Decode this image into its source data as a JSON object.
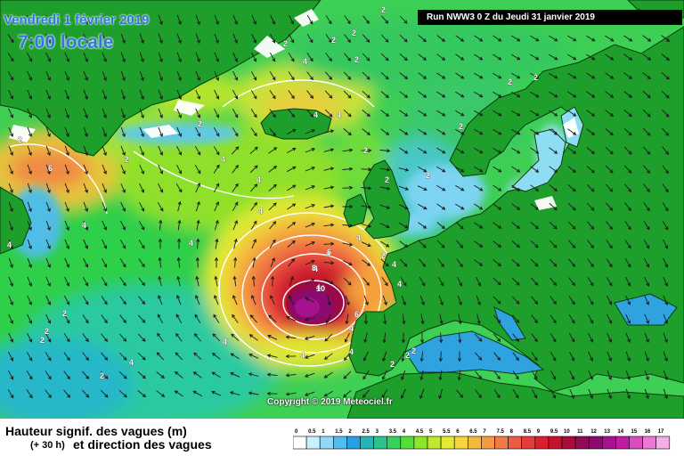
{
  "header": {
    "date": "Vendredi 1 février 2019",
    "local_time": "7:00 locale",
    "run_info": "Run NWW3 0 Z du Jeudi 31 janvier 2019"
  },
  "map": {
    "copyright": "Copyright © 2019 Meteociel.fr",
    "contour_labels": [
      "2",
      "2",
      "2",
      "2",
      "2",
      "2",
      "4",
      "4",
      "4",
      "2",
      "2",
      "2",
      "2",
      "6",
      "4",
      "4",
      "4",
      "4",
      "4",
      "2",
      "2",
      "2",
      "2",
      "2",
      "4",
      "4",
      "4",
      "4",
      "4",
      "4",
      "6",
      "8",
      "10",
      "6",
      "4",
      "4",
      "4",
      "4",
      "2",
      "2",
      "2",
      "4",
      "2",
      "2",
      "2",
      "4",
      "4",
      "2"
    ],
    "colors": {
      "land": "#1e9e2a",
      "border": "#0b3d0b",
      "ice": "#ffffff",
      "sea_calm": "#5bc8f0",
      "wave_max": "#8b0a7a"
    }
  },
  "legend": {
    "title_line1": "Hauteur signif. des vagues (m)",
    "title_line2": "et direction des vagues",
    "forecast_hours": "(+ 30 h)",
    "scale_values": [
      "0",
      "0.5",
      "1",
      "1.5",
      "2",
      "2.5",
      "3",
      "3.5",
      "4",
      "4.5",
      "5",
      "5.5",
      "6",
      "6.5",
      "7",
      "7.5",
      "8",
      "8.5",
      "9",
      "9.5",
      "10",
      "11",
      "12",
      "13",
      "14",
      "15",
      "16",
      "17"
    ],
    "scale_colors": [
      "#ffffff",
      "#c9f0ff",
      "#8fd8f7",
      "#4fbdf0",
      "#26a0e0",
      "#2ab3b5",
      "#2bc48a",
      "#34d15e",
      "#55dc3a",
      "#8fe52c",
      "#bfe92c",
      "#e2ea34",
      "#f2d63a",
      "#f5b83e",
      "#f59a43",
      "#f17a45",
      "#ea5c43",
      "#e43b3b",
      "#dc1f2e",
      "#c5122c",
      "#a80c3a",
      "#940a55",
      "#8b0a6e",
      "#a6128e",
      "#c21aa5",
      "#d84cc0",
      "#e87ad3",
      "#f4aee6"
    ]
  }
}
